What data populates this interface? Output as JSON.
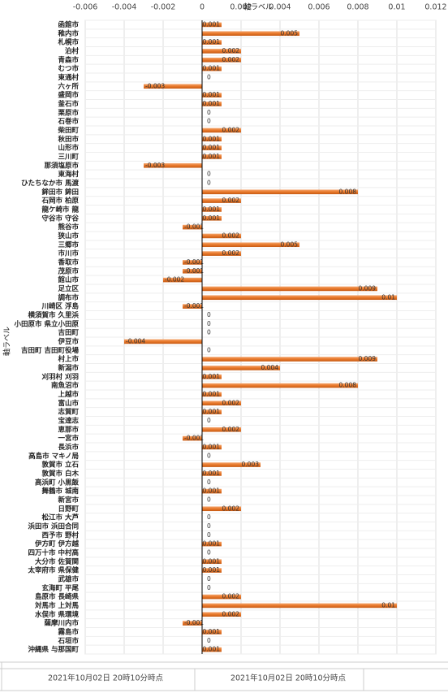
{
  "chart_data": {
    "type": "bar",
    "orientation": "horizontal",
    "x_label": "軸ラベル",
    "y_label": "軸ラベル",
    "categories": [
      "函館市",
      "稚内市",
      "札幌市",
      "泊村",
      "青森市",
      "むつ市",
      "東通村",
      "六ヶ所",
      "盛岡市",
      "釜石市",
      "栗原市",
      "石巻市",
      "柴田町",
      "秋田市",
      "山形市",
      "三川町",
      "那須塩原市",
      "東海村",
      "ひたちなか市 馬渡",
      "鉾田市 鉾田",
      "石岡市 柏原",
      "龍ケ崎市 龍",
      "守谷市 守谷",
      "熊谷市",
      "狭山市",
      "三郷市",
      "市川市",
      "香取市",
      "茂原市",
      "館山市",
      "足立区",
      "調布市",
      "川崎区 浮島",
      "横須賀市 久里浜",
      "小田原市 県立小田原",
      "吉田町",
      "伊豆市",
      "吉田町 吉田町役場",
      "村上市",
      "新潟市",
      "刈羽村 刈羽",
      "南魚沼市",
      "上越市",
      "富山市",
      "志賀町",
      "宝達志",
      "恵那市",
      "一宮市",
      "長浜市",
      "高島市 マキノ局",
      "敦賀市 立石",
      "敦賀市 白木",
      "高浜町 小黒飯",
      "舞鶴市 城南",
      "新宮市",
      "日野町",
      "松江市 大芦",
      "浜田市 浜田合同",
      "西予市 野村",
      "伊方町 伊方越",
      "四万十市 中村高",
      "大分市 佐賀関",
      "太宰府市 県保健",
      "武雄市",
      "玄海町 平尾",
      "島原市 長崎県",
      "対馬市 上対馬",
      "水俣市 県環境",
      "薩摩川内市",
      "霧島市",
      "石垣市",
      "沖縄県 与那国町"
    ],
    "values": [
      0.001,
      0.005,
      0.001,
      0.002,
      0.002,
      0.001,
      0,
      -0.003,
      0.001,
      0.001,
      0,
      0,
      0.002,
      0.001,
      0.001,
      0.001,
      -0.003,
      0,
      0,
      0.008,
      0.002,
      0.001,
      0.001,
      -0.001,
      0.002,
      0.005,
      0.002,
      -0.001,
      -0.001,
      -0.002,
      0.009,
      0.01,
      -0.001,
      0,
      0,
      0,
      -0.004,
      0,
      0.009,
      0.004,
      0.001,
      0.008,
      0.001,
      0.002,
      0.001,
      0,
      0.002,
      -0.001,
      0.001,
      0,
      0.003,
      0.001,
      0,
      0.001,
      0,
      0.002,
      0,
      0,
      0,
      0.001,
      0,
      0.001,
      0.001,
      0,
      0,
      0.002,
      0.01,
      0.002,
      -0.001,
      0.001,
      0,
      0.001
    ],
    "color": "#e8782a",
    "xlim": [
      -0.006,
      0.012
    ],
    "xticks": [
      -0.006,
      -0.004,
      -0.002,
      0,
      0.002,
      0.004,
      0.006,
      0.008,
      0.01,
      0.012
    ],
    "grid": true,
    "footer_labels": [
      "2021年10月02日 20時10分時点",
      "2021年10月02日 20時10分時点"
    ]
  }
}
